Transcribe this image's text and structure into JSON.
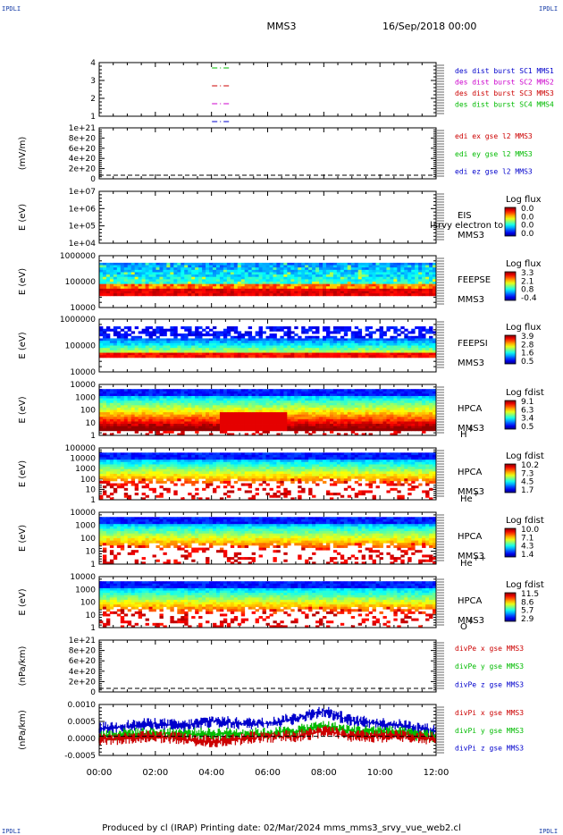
{
  "header": {
    "title": "MMS3",
    "datetime": "16/Sep/2018 00:00",
    "corner_label": "IPDLI"
  },
  "footer": {
    "text": "Produced by cl (IRAP)   Printing date: 02/Mar/2024   mms_mms3_srvy_vue_web2.cl"
  },
  "colors": {
    "mms1": "#0000cc",
    "mms2": "#cc00cc",
    "mms3": "#cc0000",
    "mms4": "#00bb00",
    "x": "#cc0000",
    "y": "#00bb00",
    "z": "#0000cc"
  },
  "chart_data": [
    {
      "id": "dist",
      "type": "line",
      "y_ticks": [
        "4",
        "3",
        "2",
        "1"
      ],
      "legend": [
        {
          "text": "des dist burst SC1 MMS1",
          "color": "#0000cc"
        },
        {
          "text": "des dist burst SC2 MMS2",
          "color": "#cc00cc"
        },
        {
          "text": "des dist burst SC3 MMS3",
          "color": "#cc0000"
        },
        {
          "text": "des dist burst SC4 MMS4",
          "color": "#00bb00"
        }
      ],
      "series": [
        {
          "name": "des dist burst SC4 MMS4",
          "x": [
            "04:01",
            "04:43"
          ],
          "y": 4
        },
        {
          "name": "des dist burst SC3 MMS3",
          "x": [
            "04:01",
            "04:43"
          ],
          "y": 3
        },
        {
          "name": "des dist burst SC2 MMS2",
          "x": [
            "04:01",
            "04:43"
          ],
          "y": 2
        },
        {
          "name": "des dist burst SC1 MMS1",
          "x": [
            "04:01",
            "04:43"
          ],
          "y": 1
        }
      ]
    },
    {
      "id": "edi",
      "type": "line",
      "ylabel": "(mV/m)",
      "y_ticks": [
        "1e+21",
        "8e+20",
        "6e+20",
        "4e+20",
        "2e+20",
        "0"
      ],
      "ylim": [
        0,
        1e+21
      ],
      "legend": [
        {
          "text": "edi ex gse l2 MMS3",
          "color": "#cc0000"
        },
        {
          "text": "edi ey gse l2 MMS3",
          "color": "#00bb00"
        },
        {
          "text": "edi ez gse l2 MMS3",
          "color": "#0000cc"
        }
      ]
    },
    {
      "id": "eis",
      "type": "heatmap",
      "ylabel": "E (eV)",
      "y_ticks": [
        "1e+07",
        "1e+06",
        "1e+05",
        "1e+04"
      ],
      "labels": [
        "EIS",
        "MMS3"
      ],
      "overlay_text": "l srvy electron to",
      "colorbar": {
        "title": "Log flux",
        "ticks": [
          "0.0",
          "0.0",
          "0.0",
          "0.0"
        ]
      }
    },
    {
      "id": "feepse",
      "type": "heatmap",
      "ylabel": "E (eV)",
      "y_ticks": [
        "1000000",
        "100000",
        "10000"
      ],
      "labels": [
        "FEEPSE",
        "MMS3"
      ],
      "colorbar": {
        "title": "Log flux",
        "ticks": [
          "3.3",
          "2.1",
          "0.8",
          "-0.4"
        ]
      }
    },
    {
      "id": "feepsi",
      "type": "heatmap",
      "ylabel": "E (eV)",
      "y_ticks": [
        "1000000",
        "100000",
        "10000"
      ],
      "labels": [
        "FEEPSI",
        "MMS3"
      ],
      "colorbar": {
        "title": "Log flux",
        "ticks": [
          "3.9",
          "2.8",
          "1.6",
          "0.5"
        ]
      }
    },
    {
      "id": "hpca_h",
      "type": "heatmap",
      "ylabel": "E (eV)",
      "y_ticks": [
        "10000",
        "1000",
        "100",
        "10",
        "1"
      ],
      "labels": [
        "HPCA",
        "MMS3",
        "H",
        "+"
      ],
      "colorbar": {
        "title": "Log fdist",
        "ticks": [
          "9.1",
          "6.3",
          "3.4",
          "0.5"
        ]
      }
    },
    {
      "id": "hpca_he",
      "type": "heatmap",
      "ylabel": "E (eV)",
      "y_ticks": [
        "100000",
        "10000",
        "1000",
        "100",
        "10",
        "1"
      ],
      "labels": [
        "HPCA",
        "MMS3",
        "He",
        "+"
      ],
      "colorbar": {
        "title": "Log fdist",
        "ticks": [
          "10.2",
          "7.3",
          "4.5",
          "1.7"
        ]
      }
    },
    {
      "id": "hpca_hepp",
      "type": "heatmap",
      "ylabel": "E (eV)",
      "y_ticks": [
        "10000",
        "1000",
        "100",
        "10",
        "1"
      ],
      "labels": [
        "HPCA",
        "MMS3",
        "He",
        "++"
      ],
      "colorbar": {
        "title": "Log fdist",
        "ticks": [
          "10.0",
          "7.1",
          "4.3",
          "1.4"
        ]
      }
    },
    {
      "id": "hpca_o",
      "type": "heatmap",
      "ylabel": "E (eV)",
      "y_ticks": [
        "10000",
        "1000",
        "100",
        "10",
        "1"
      ],
      "labels": [
        "HPCA",
        "MMS3",
        "O",
        "+"
      ],
      "colorbar": {
        "title": "Log fdist",
        "ticks": [
          "11.5",
          "8.6",
          "5.7",
          "2.9"
        ]
      }
    },
    {
      "id": "divpe",
      "type": "line",
      "ylabel": "(nPa/km)",
      "y_ticks": [
        "1e+21",
        "8e+20",
        "6e+20",
        "4e+20",
        "2e+20",
        "0"
      ],
      "ylim": [
        0,
        1e+21
      ],
      "legend": [
        {
          "text": "divPe x gse MMS3",
          "color": "#cc0000"
        },
        {
          "text": "divPe y gse MMS3",
          "color": "#00bb00"
        },
        {
          "text": "divPe z gse MMS3",
          "color": "#0000cc"
        }
      ]
    },
    {
      "id": "divpi",
      "type": "line",
      "ylabel": "(nPa/km)",
      "y_ticks": [
        "0.0010",
        "0.0005",
        "0.0000",
        "-0.0005"
      ],
      "ylim": [
        -0.00075,
        0.00125
      ],
      "xlabel_ticks": [
        "00:00",
        "02:00",
        "04:00",
        "06:00",
        "08:00",
        "10:00",
        "12:00"
      ],
      "legend": [
        {
          "text": "divPi x gse MMS3",
          "color": "#cc0000"
        },
        {
          "text": "divPi y gse MMS3",
          "color": "#00bb00"
        },
        {
          "text": "divPi z gse MMS3",
          "color": "#0000cc"
        }
      ],
      "series": [
        {
          "name": "divPi z gse MMS3",
          "x": [
            "00:00",
            "01:00",
            "02:00",
            "03:00",
            "04:00",
            "05:00",
            "06:00",
            "07:00",
            "08:00",
            "09:00",
            "10:00",
            "11:00",
            "12:00"
          ],
          "y": [
            0.0003,
            0.0004,
            0.0005,
            0.0004,
            0.0006,
            0.0005,
            0.0005,
            0.0007,
            0.001,
            0.0006,
            0.0005,
            0.0004,
            0.0002
          ]
        },
        {
          "name": "divPi y gse MMS3",
          "x": [
            "00:00",
            "01:00",
            "02:00",
            "03:00",
            "04:00",
            "05:00",
            "06:00",
            "07:00",
            "08:00",
            "09:00",
            "10:00",
            "11:00",
            "12:00"
          ],
          "y": [
            0.0,
            0.0001,
            0.0001,
            0.0001,
            0.0001,
            0.0001,
            0.0001,
            0.0002,
            0.0004,
            0.0002,
            0.0002,
            0.0001,
            0.0
          ]
        },
        {
          "name": "divPi x gse MMS3",
          "x": [
            "00:00",
            "01:00",
            "02:00",
            "03:00",
            "04:00",
            "05:00",
            "06:00",
            "07:00",
            "08:00",
            "09:00",
            "10:00",
            "11:00",
            "12:00"
          ],
          "y": [
            -0.0001,
            -0.0001,
            0.0,
            -0.0001,
            -0.0002,
            -0.0001,
            0.0,
            0.0,
            0.0002,
            0.0,
            0.0,
            0.0,
            -0.0001
          ]
        }
      ]
    }
  ]
}
